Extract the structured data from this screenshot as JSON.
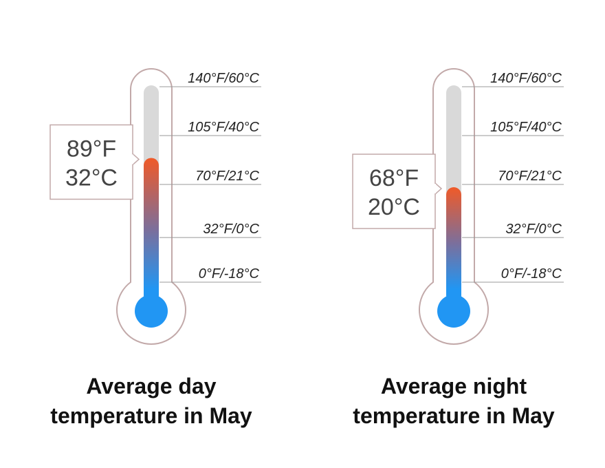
{
  "chart_data": [
    {
      "type": "thermometer",
      "title": "Average day temperature in May",
      "values": [
        89
      ],
      "value_labels": [
        [
          "89°F",
          "32°C"
        ]
      ],
      "ylim": [
        0,
        140
      ],
      "yticks": [
        {
          "value": 0,
          "label": "0°F/-18°C"
        },
        {
          "value": 32,
          "label": "32°F/0°C"
        },
        {
          "value": 70,
          "label": "70°F/21°C"
        },
        {
          "value": 105,
          "label": "105°F/40°C"
        },
        {
          "value": 140,
          "label": "140°F/60°C"
        }
      ],
      "colors": [
        "#2196f3",
        "#f05a28"
      ]
    },
    {
      "type": "thermometer",
      "title": "Average night temperature in May",
      "values": [
        68
      ],
      "value_labels": [
        [
          "68°F",
          "20°C"
        ]
      ],
      "ylim": [
        0,
        140
      ],
      "yticks": [
        {
          "value": 0,
          "label": "0°F/-18°C"
        },
        {
          "value": 32,
          "label": "32°F/0°C"
        },
        {
          "value": 70,
          "label": "70°F/21°C"
        },
        {
          "value": 105,
          "label": "105°F/40°C"
        },
        {
          "value": 140,
          "label": "140°F/60°C"
        }
      ],
      "colors": [
        "#2196f3",
        "#f05a28"
      ]
    }
  ]
}
